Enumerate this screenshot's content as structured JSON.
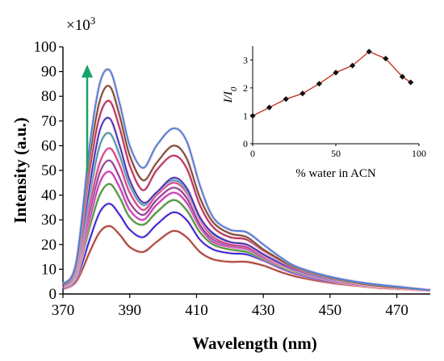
{
  "chart_data": [
    {
      "type": "line",
      "xlabel": "Wavelength (nm)",
      "ylabel": "Intensity  (a.u.)",
      "y_multiplier": "×10",
      "y_multiplier_exp": "3",
      "xlim": [
        370,
        480
      ],
      "ylim": [
        0,
        100
      ],
      "x_ticks": [
        "370",
        "390",
        "410",
        "430",
        "450",
        "470"
      ],
      "y_ticks": [
        "0",
        "10",
        "20",
        "30",
        "40",
        "50",
        "60",
        "70",
        "80",
        "90",
        "100"
      ],
      "arrow_color": "#1aa36a",
      "x": [
        370,
        374,
        378,
        381,
        384,
        387,
        390,
        394,
        398,
        403,
        407,
        411,
        415,
        420,
        425,
        430,
        435,
        440,
        450,
        460,
        470,
        480
      ],
      "series": [
        {
          "color": "#a0402c",
          "values": [
            2,
            5,
            17,
            25,
            27.5,
            24,
            19,
            17,
            21,
            25.5,
            23,
            17,
            14,
            13,
            13,
            11.5,
            9,
            7,
            4.5,
            3,
            2,
            1.5
          ]
        },
        {
          "color": "#1f1fe0",
          "values": [
            2,
            6,
            22,
            33,
            36.5,
            32,
            26,
            23,
            28,
            33,
            30,
            22,
            18,
            16.5,
            16,
            13.5,
            10.5,
            8,
            5,
            3.5,
            2.5,
            1.5
          ]
        },
        {
          "color": "#2aa02a",
          "values": [
            2.5,
            7,
            27,
            40,
            44.5,
            39,
            31,
            28,
            33,
            38,
            34,
            25,
            20,
            18,
            17,
            14,
            11,
            8.5,
            5.5,
            3.5,
            2.5,
            1.5
          ]
        },
        {
          "color": "#c030c0",
          "values": [
            2.5,
            7.5,
            30,
            45,
            49.5,
            43,
            34,
            30,
            36,
            41,
            37,
            27,
            21,
            19,
            18,
            14.5,
            11.5,
            9,
            5.5,
            3.5,
            2.5,
            1.5
          ]
        },
        {
          "color": "#7a3a9a",
          "values": [
            3,
            8,
            33,
            49,
            54,
            47,
            37,
            32,
            38,
            43,
            39,
            28,
            22,
            19.5,
            18.5,
            15,
            12,
            9,
            5.5,
            3.5,
            2.5,
            1.5
          ]
        },
        {
          "color": "#d03a8a",
          "values": [
            3,
            8.5,
            36,
            53,
            59,
            52,
            41,
            34,
            40,
            45,
            41,
            30,
            23,
            20,
            19,
            15.5,
            12,
            9.5,
            6,
            4,
            2.5,
            1.5
          ]
        },
        {
          "color": "#2f9fb0",
          "values": [
            3,
            9,
            40,
            60,
            65,
            56,
            44,
            36,
            41,
            46,
            42,
            31,
            24,
            21,
            20,
            16,
            12.5,
            9.5,
            6,
            4,
            2.5,
            1.5
          ]
        },
        {
          "color": "#3030c0",
          "values": [
            3,
            10,
            44,
            66,
            71,
            60,
            46,
            37,
            41,
            47,
            43,
            31,
            24.5,
            21,
            20,
            16,
            12.5,
            9.5,
            6,
            4,
            2.5,
            1.5
          ]
        },
        {
          "color": "#b02a5a",
          "values": [
            3.5,
            11,
            50,
            72,
            78,
            67,
            52,
            42,
            50,
            56,
            51,
            36,
            27,
            23,
            22,
            17.5,
            13.5,
            10,
            6.5,
            4,
            2.5,
            1.5
          ]
        },
        {
          "color": "#6a4a2a",
          "values": [
            3.5,
            12,
            55,
            78,
            84,
            72,
            56,
            46,
            53,
            60,
            55,
            39,
            29,
            24.5,
            23,
            18,
            14,
            10.5,
            6.5,
            4,
            2.5,
            1.5
          ]
        },
        {
          "color": "#3a80e0",
          "values": [
            4,
            13,
            60,
            85,
            90.5,
            77,
            60,
            51,
            60,
            67,
            62,
            44,
            31,
            26,
            25,
            20,
            15,
            11,
            7,
            4.5,
            3,
            1.5
          ]
        }
      ]
    },
    {
      "type": "line",
      "xlabel": "% water in ACN",
      "ylabel_main": "I/I",
      "ylabel_sub": "0",
      "xlim": [
        0,
        100
      ],
      "ylim": [
        0,
        3.5
      ],
      "x_ticks": [
        "0",
        "50",
        "100"
      ],
      "y_ticks": [
        "0",
        "1",
        "2",
        "3"
      ],
      "line_color": "#c0392b",
      "marker_color": "#111111",
      "x": [
        0,
        10,
        20,
        30,
        40,
        50,
        60,
        70,
        80,
        90,
        95
      ],
      "values": [
        1.0,
        1.3,
        1.6,
        1.8,
        2.15,
        2.55,
        2.8,
        3.3,
        3.05,
        2.4,
        2.2
      ]
    }
  ]
}
